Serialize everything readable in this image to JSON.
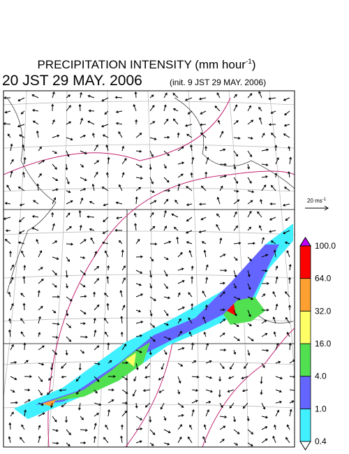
{
  "title": {
    "text": "PRECIPITATION INTENSITY (mm hour",
    "superscript": "-1",
    "close": ")"
  },
  "valid_time": "20 JST 29 MAY. 2006",
  "init_time": "(init. 9 JST 29 MAY. 2006)",
  "reference_vector": {
    "label": "20 ms",
    "superscript": "-1"
  },
  "colorbar": {
    "levels": [
      0.4,
      {
        "value": 1,
        "label": "1.0"
      },
      {
        "value": 4,
        "label": "4.0"
      },
      {
        "value": 16,
        "label": "16.0"
      },
      {
        "value": 32,
        "label": "32.0"
      },
      {
        "value": 64,
        "label": "64.0"
      },
      {
        "value": 100,
        "label": "100.0"
      }
    ],
    "colors": [
      "#ffffff",
      "#40f0ff",
      "#6464ff",
      "#50e050",
      "#ffff66",
      "#ffa030",
      "#ff0000",
      "#c000ff"
    ]
  }
}
